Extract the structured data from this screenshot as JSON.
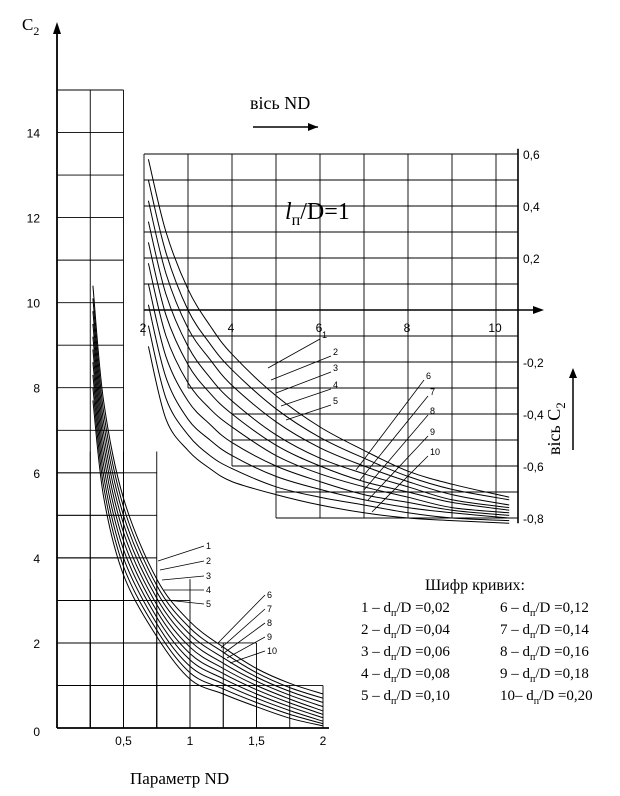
{
  "chart_data": {
    "type": "line",
    "subtitle_parts": [
      "l",
      "п",
      "/D=1"
    ],
    "main": {
      "ylabel_parts": [
        "C",
        "2"
      ],
      "xlabel": "Параметр ND",
      "xlim": [
        0,
        2.0
      ],
      "ylim": [
        0,
        15
      ],
      "x_ticks": [
        {
          "value": 0.5,
          "label": "0,5"
        },
        {
          "value": 1.0,
          "label": "1"
        },
        {
          "value": 1.5,
          "label": "1,5"
        },
        {
          "value": 2.0,
          "label": "2"
        }
      ],
      "y_ticks": [
        {
          "value": 0,
          "label": "0"
        },
        {
          "value": 2,
          "label": "2"
        },
        {
          "value": 4,
          "label": "4"
        },
        {
          "value": 6,
          "label": "6"
        },
        {
          "value": 8,
          "label": "8"
        },
        {
          "value": 10,
          "label": "10"
        },
        {
          "value": 12,
          "label": "12"
        },
        {
          "value": 14,
          "label": "14"
        }
      ],
      "series": [
        {
          "name": "1",
          "points": [
            [
              0.27,
              10.4
            ],
            [
              0.35,
              7.7
            ],
            [
              0.5,
              5.4
            ],
            [
              0.75,
              3.5
            ],
            [
              1.0,
              2.5
            ],
            [
              1.25,
              1.9
            ],
            [
              1.5,
              1.4
            ],
            [
              1.75,
              1.05
            ],
            [
              2.0,
              0.8
            ]
          ]
        },
        {
          "name": "2",
          "points": [
            [
              0.27,
              10.1
            ],
            [
              0.35,
              7.45
            ],
            [
              0.5,
              5.2
            ],
            [
              0.75,
              3.35
            ],
            [
              1.0,
              2.35
            ],
            [
              1.25,
              1.78
            ],
            [
              1.5,
              1.3
            ],
            [
              1.75,
              0.95
            ],
            [
              2.0,
              0.7
            ]
          ]
        },
        {
          "name": "3",
          "points": [
            [
              0.27,
              9.8
            ],
            [
              0.35,
              7.2
            ],
            [
              0.5,
              5.0
            ],
            [
              0.75,
              3.2
            ],
            [
              1.0,
              2.2
            ],
            [
              1.25,
              1.65
            ],
            [
              1.5,
              1.2
            ],
            [
              1.75,
              0.86
            ],
            [
              2.0,
              0.6
            ]
          ]
        },
        {
          "name": "4",
          "points": [
            [
              0.27,
              9.5
            ],
            [
              0.35,
              6.95
            ],
            [
              0.5,
              4.8
            ],
            [
              0.75,
              3.05
            ],
            [
              1.0,
              2.05
            ],
            [
              1.25,
              1.52
            ],
            [
              1.5,
              1.1
            ],
            [
              1.75,
              0.77
            ],
            [
              2.0,
              0.5
            ]
          ]
        },
        {
          "name": "5",
          "points": [
            [
              0.27,
              9.2
            ],
            [
              0.35,
              6.7
            ],
            [
              0.5,
              4.6
            ],
            [
              0.75,
              2.9
            ],
            [
              1.0,
              1.9
            ],
            [
              1.25,
              1.4
            ],
            [
              1.5,
              1.0
            ],
            [
              1.75,
              0.68
            ],
            [
              2.0,
              0.4
            ]
          ]
        },
        {
          "name": "6",
          "points": [
            [
              0.27,
              8.9
            ],
            [
              0.35,
              6.45
            ],
            [
              0.5,
              4.4
            ],
            [
              0.75,
              2.75
            ],
            [
              1.0,
              1.75
            ],
            [
              1.25,
              1.28
            ],
            [
              1.5,
              0.9
            ],
            [
              1.75,
              0.59
            ],
            [
              2.0,
              0.32
            ]
          ]
        },
        {
          "name": "7",
          "points": [
            [
              0.27,
              8.6
            ],
            [
              0.35,
              6.2
            ],
            [
              0.5,
              4.2
            ],
            [
              0.75,
              2.6
            ],
            [
              1.0,
              1.6
            ],
            [
              1.25,
              1.16
            ],
            [
              1.5,
              0.8
            ],
            [
              1.75,
              0.5
            ],
            [
              2.0,
              0.24
            ]
          ]
        },
        {
          "name": "8",
          "points": [
            [
              0.27,
              8.3
            ],
            [
              0.35,
              5.95
            ],
            [
              0.5,
              4.0
            ],
            [
              0.75,
              2.45
            ],
            [
              1.0,
              1.45
            ],
            [
              1.25,
              1.04
            ],
            [
              1.5,
              0.7
            ],
            [
              1.75,
              0.41
            ],
            [
              2.0,
              0.16
            ]
          ]
        },
        {
          "name": "9",
          "points": [
            [
              0.27,
              8.0
            ],
            [
              0.35,
              5.7
            ],
            [
              0.5,
              3.8
            ],
            [
              0.75,
              2.3
            ],
            [
              1.0,
              1.3
            ],
            [
              1.25,
              0.92
            ],
            [
              1.5,
              0.6
            ],
            [
              1.75,
              0.32
            ],
            [
              2.0,
              0.1
            ]
          ]
        },
        {
          "name": "10",
          "points": [
            [
              0.27,
              7.7
            ],
            [
              0.35,
              5.45
            ],
            [
              0.5,
              3.6
            ],
            [
              0.75,
              2.15
            ],
            [
              1.0,
              1.15
            ],
            [
              1.25,
              0.8
            ],
            [
              1.5,
              0.5
            ],
            [
              1.75,
              0.23
            ],
            [
              2.0,
              0.05
            ]
          ]
        }
      ]
    },
    "inset": {
      "xlabel": "вісь ND",
      "ylabel_parts": [
        "вісь C",
        "2"
      ],
      "xlim": [
        2,
        10.5
      ],
      "ylim": [
        -0.85,
        0.65
      ],
      "x_ticks": [
        {
          "value": 2,
          "label": "2"
        },
        {
          "value": 4,
          "label": "4"
        },
        {
          "value": 6,
          "label": "6"
        },
        {
          "value": 8,
          "label": "8"
        },
        {
          "value": 10,
          "label": "10"
        }
      ],
      "y_ticks": [
        {
          "value": 0.6,
          "label": "0,6"
        },
        {
          "value": 0.4,
          "label": "0,4"
        },
        {
          "value": 0.2,
          "label": "0,2"
        },
        {
          "value": -0.2,
          "label": "-0,2"
        },
        {
          "value": -0.4,
          "label": "-0,4"
        },
        {
          "value": -0.6,
          "label": "-0,6"
        },
        {
          "value": -0.8,
          "label": "-0,8"
        }
      ],
      "series": [
        {
          "name": "1",
          "points": [
            [
              2.1,
              0.58
            ],
            [
              2.5,
              0.3
            ],
            [
              3,
              0.08
            ],
            [
              3.5,
              -0.06
            ],
            [
              4,
              -0.17
            ],
            [
              5,
              -0.33
            ],
            [
              6,
              -0.45
            ],
            [
              7,
              -0.54
            ],
            [
              8,
              -0.62
            ],
            [
              9,
              -0.67
            ],
            [
              10.3,
              -0.72
            ]
          ]
        },
        {
          "name": "2",
          "points": [
            [
              2.1,
              0.5
            ],
            [
              2.5,
              0.22
            ],
            [
              3,
              0.0
            ],
            [
              3.5,
              -0.13
            ],
            [
              4,
              -0.23
            ],
            [
              5,
              -0.38
            ],
            [
              6,
              -0.49
            ],
            [
              7,
              -0.57
            ],
            [
              8,
              -0.64
            ],
            [
              9,
              -0.69
            ],
            [
              10.3,
              -0.73
            ]
          ]
        },
        {
          "name": "3",
          "points": [
            [
              2.1,
              0.42
            ],
            [
              2.5,
              0.14
            ],
            [
              3,
              -0.07
            ],
            [
              3.5,
              -0.19
            ],
            [
              4,
              -0.29
            ],
            [
              5,
              -0.43
            ],
            [
              6,
              -0.53
            ],
            [
              7,
              -0.6
            ],
            [
              8,
              -0.66
            ],
            [
              9,
              -0.71
            ],
            [
              10.3,
              -0.75
            ]
          ]
        },
        {
          "name": "4",
          "points": [
            [
              2.1,
              0.34
            ],
            [
              2.5,
              0.06
            ],
            [
              3,
              -0.14
            ],
            [
              3.5,
              -0.26
            ],
            [
              4,
              -0.35
            ],
            [
              5,
              -0.48
            ],
            [
              6,
              -0.57
            ],
            [
              7,
              -0.63
            ],
            [
              8,
              -0.68
            ],
            [
              9,
              -0.73
            ],
            [
              10.3,
              -0.76
            ]
          ]
        },
        {
          "name": "5",
          "points": [
            [
              2.1,
              0.26
            ],
            [
              2.5,
              -0.02
            ],
            [
              3,
              -0.21
            ],
            [
              3.5,
              -0.32
            ],
            [
              4,
              -0.4
            ],
            [
              5,
              -0.52
            ],
            [
              6,
              -0.6
            ],
            [
              7,
              -0.66
            ],
            [
              8,
              -0.7
            ],
            [
              9,
              -0.74
            ],
            [
              10.3,
              -0.77
            ]
          ]
        },
        {
          "name": "6",
          "points": [
            [
              2.1,
              0.18
            ],
            [
              2.5,
              -0.1
            ],
            [
              3,
              -0.28
            ],
            [
              3.5,
              -0.38
            ],
            [
              4,
              -0.45
            ],
            [
              5,
              -0.56
            ],
            [
              6,
              -0.63
            ],
            [
              7,
              -0.68
            ],
            [
              8,
              -0.72
            ],
            [
              9,
              -0.76
            ],
            [
              10.3,
              -0.78
            ]
          ]
        },
        {
          "name": "7",
          "points": [
            [
              2.1,
              0.1
            ],
            [
              2.5,
              -0.18
            ],
            [
              3,
              -0.35
            ],
            [
              3.5,
              -0.44
            ],
            [
              4,
              -0.51
            ],
            [
              5,
              -0.6
            ],
            [
              6,
              -0.66
            ],
            [
              7,
              -0.71
            ],
            [
              8,
              -0.74
            ],
            [
              9,
              -0.77
            ],
            [
              10.3,
              -0.79
            ]
          ]
        },
        {
          "name": "8",
          "points": [
            [
              2.1,
              0.02
            ],
            [
              2.5,
              -0.26
            ],
            [
              3,
              -0.42
            ],
            [
              3.5,
              -0.5
            ],
            [
              4,
              -0.56
            ],
            [
              5,
              -0.64
            ],
            [
              6,
              -0.69
            ],
            [
              7,
              -0.73
            ],
            [
              8,
              -0.76
            ],
            [
              9,
              -0.78
            ],
            [
              10.3,
              -0.8
            ]
          ]
        },
        {
          "name": "9",
          "points": [
            [
              2.1,
              -0.06
            ],
            [
              2.5,
              -0.34
            ],
            [
              3,
              -0.48
            ],
            [
              3.5,
              -0.56
            ],
            [
              4,
              -0.61
            ],
            [
              5,
              -0.68
            ],
            [
              6,
              -0.72
            ],
            [
              7,
              -0.75
            ],
            [
              8,
              -0.78
            ],
            [
              9,
              -0.8
            ],
            [
              10.3,
              -0.81
            ]
          ]
        },
        {
          "name": "10",
          "points": [
            [
              2.1,
              -0.14
            ],
            [
              2.5,
              -0.42
            ],
            [
              3,
              -0.54
            ],
            [
              3.5,
              -0.61
            ],
            [
              4,
              -0.66
            ],
            [
              5,
              -0.71
            ],
            [
              6,
              -0.75
            ],
            [
              7,
              -0.78
            ],
            [
              8,
              -0.8
            ],
            [
              9,
              -0.81
            ],
            [
              10.3,
              -0.82
            ]
          ]
        }
      ]
    },
    "legend": {
      "title": "Шифр кривих:",
      "items": [
        {
          "num": "1",
          "value": "0,02"
        },
        {
          "num": "2",
          "value": "0,04"
        },
        {
          "num": "3",
          "value": "0,06"
        },
        {
          "num": "4",
          "value": "0,08"
        },
        {
          "num": "5",
          "value": "0,10"
        },
        {
          "num": "6",
          "value": "0,12"
        },
        {
          "num": "7",
          "value": "0,14"
        },
        {
          "num": "8",
          "value": "0,16"
        },
        {
          "num": "9",
          "value": "0,18"
        },
        {
          "num": "10",
          "value": "0,20"
        }
      ]
    }
  }
}
